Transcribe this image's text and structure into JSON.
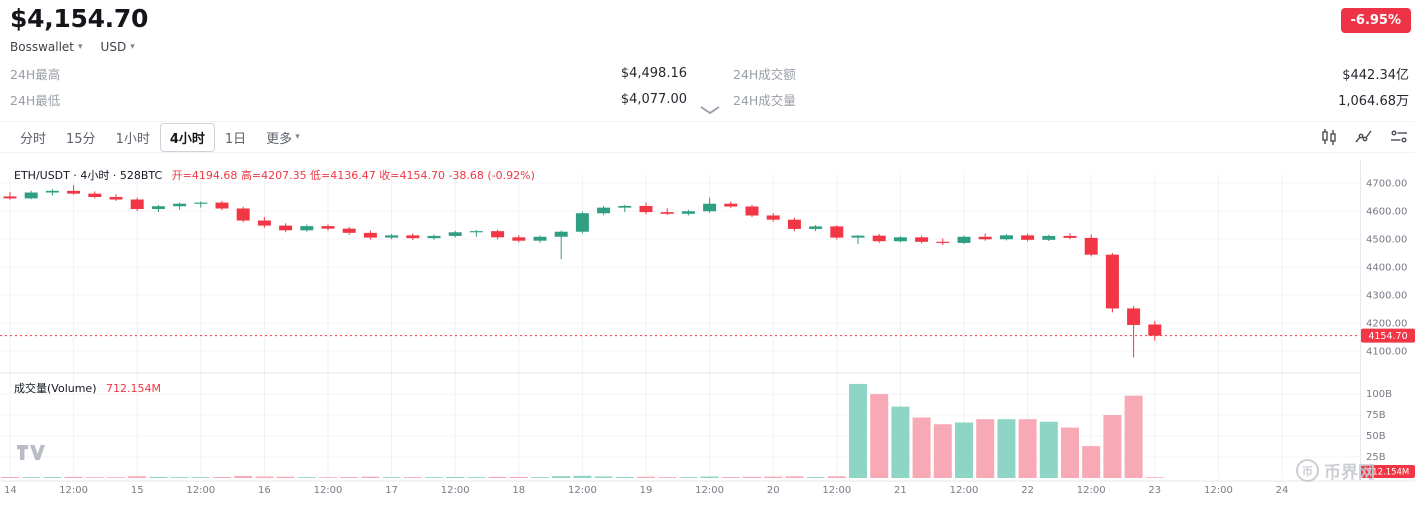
{
  "header": {
    "price": "$4,154.70",
    "change_badge": "-6.95%",
    "wallet_selector": "Bosswallet",
    "currency_selector": "USD",
    "stats": {
      "high_label": "24H最高",
      "high_value": "$4,498.16",
      "low_label": "24H最低",
      "low_value": "$4,077.00",
      "amount_label": "24H成交额",
      "amount_value": "$442.34亿",
      "volume_label": "24H成交量",
      "volume_value": "1,064.68万"
    }
  },
  "toolbar": {
    "intervals": [
      "分时",
      "15分",
      "1小时",
      "4小时",
      "1日"
    ],
    "active_interval": "4小时",
    "more_label": "更多",
    "icons": [
      "candlestick-style-icon",
      "indicators-icon",
      "chart-settings-icon"
    ]
  },
  "chart": {
    "symbol_info": "ETH/USDT · 4小时 · 528BTC",
    "ohlc_text": "开=4194.68 高=4207.35 低=4136.47 收=4154.70 -38.68 (-0.92%)",
    "volume_label": "成交量(Volume)",
    "volume_value": "712.154M",
    "price_badge": "4154.70",
    "volume_badge": "712.154M",
    "watermark_icon": "币",
    "watermark": "币界网"
  },
  "chart_data": {
    "type": "candlestick",
    "title": "ETH/USDT 4小时",
    "symbol": "ETH/USDT",
    "interval": "4小时",
    "grid": true,
    "legend_position": "top-left",
    "ylim_price": [
      4100,
      4700
    ],
    "ylim_volume_B": [
      0,
      115
    ],
    "current_price": 4154.7,
    "ohlc_last": {
      "open": 4194.68,
      "high": 4207.35,
      "low": 4136.47,
      "close": 4154.7,
      "change": -38.68,
      "change_pct": "-0.92%"
    },
    "price_axis_ticks": [
      "4700.00",
      "4600.00",
      "4500.00",
      "4400.00",
      "4300.00",
      "4200.00",
      "4100.00"
    ],
    "volume_axis_ticks": [
      "100B",
      "75B",
      "50B",
      "25B"
    ],
    "x_axis_ticks": [
      "14",
      "12:00",
      "15",
      "12:00",
      "16",
      "12:00",
      "17",
      "12:00",
      "18",
      "12:00",
      "19",
      "12:00",
      "20",
      "12:00",
      "21",
      "12:00",
      "22",
      "12:00",
      "23",
      "12:00",
      "24"
    ],
    "candles": [
      [
        4652,
        4668,
        4640,
        4645
      ],
      [
        4645,
        4672,
        4642,
        4666
      ],
      [
        4666,
        4678,
        4655,
        4672
      ],
      [
        4672,
        4692,
        4658,
        4662
      ],
      [
        4662,
        4670,
        4645,
        4650
      ],
      [
        4650,
        4660,
        4636,
        4641
      ],
      [
        4641,
        4648,
        4600,
        4607
      ],
      [
        4607,
        4622,
        4596,
        4617
      ],
      [
        4617,
        4630,
        4605,
        4626
      ],
      [
        4626,
        4634,
        4612,
        4630
      ],
      [
        4630,
        4636,
        4603,
        4609
      ],
      [
        4609,
        4615,
        4560,
        4566
      ],
      [
        4566,
        4578,
        4540,
        4548
      ],
      [
        4548,
        4556,
        4524,
        4531
      ],
      [
        4531,
        4552,
        4526,
        4546
      ],
      [
        4546,
        4552,
        4530,
        4537
      ],
      [
        4537,
        4543,
        4516,
        4522
      ],
      [
        4522,
        4530,
        4498,
        4505
      ],
      [
        4505,
        4518,
        4499,
        4513
      ],
      [
        4513,
        4520,
        4496,
        4503
      ],
      [
        4503,
        4516,
        4497,
        4511
      ],
      [
        4511,
        4529,
        4505,
        4524
      ],
      [
        4524,
        4532,
        4508,
        4528
      ],
      [
        4528,
        4534,
        4499,
        4506
      ],
      [
        4506,
        4514,
        4488,
        4494
      ],
      [
        4494,
        4512,
        4487,
        4508
      ],
      [
        4508,
        4530,
        4428,
        4526
      ],
      [
        4526,
        4598,
        4520,
        4592
      ],
      [
        4592,
        4618,
        4585,
        4612
      ],
      [
        4612,
        4622,
        4596,
        4618
      ],
      [
        4618,
        4630,
        4588,
        4596
      ],
      [
        4596,
        4610,
        4585,
        4590
      ],
      [
        4590,
        4604,
        4584,
        4599
      ],
      [
        4599,
        4648,
        4594,
        4626
      ],
      [
        4626,
        4634,
        4610,
        4616
      ],
      [
        4616,
        4622,
        4578,
        4584
      ],
      [
        4584,
        4592,
        4562,
        4569
      ],
      [
        4569,
        4576,
        4528,
        4536
      ],
      [
        4536,
        4550,
        4528,
        4545
      ],
      [
        4545,
        4549,
        4498,
        4505
      ],
      [
        4505,
        4514,
        4482,
        4512
      ],
      [
        4512,
        4518,
        4486,
        4492
      ],
      [
        4492,
        4510,
        4488,
        4506
      ],
      [
        4506,
        4512,
        4484,
        4490
      ],
      [
        4490,
        4502,
        4478,
        4486
      ],
      [
        4486,
        4512,
        4482,
        4508
      ],
      [
        4508,
        4520,
        4494,
        4499
      ],
      [
        4499,
        4517,
        4495,
        4513
      ],
      [
        4513,
        4519,
        4492,
        4497
      ],
      [
        4497,
        4515,
        4493,
        4511
      ],
      [
        4511,
        4521,
        4499,
        4504
      ],
      [
        4504,
        4516,
        4438,
        4444
      ],
      [
        4444,
        4450,
        4238,
        4252
      ],
      [
        4252,
        4260,
        4077,
        4193
      ],
      [
        4194.68,
        4207.35,
        4136.47,
        4154.7
      ]
    ],
    "volumes_B": [
      1.2,
      0.9,
      1.1,
      1.4,
      0.8,
      0.7,
      2.1,
      1.3,
      1.0,
      0.9,
      1.2,
      2.4,
      1.8,
      1.5,
      0.9,
      0.8,
      1.1,
      1.6,
      0.9,
      1.0,
      0.8,
      1.2,
      1.0,
      1.4,
      1.3,
      0.9,
      2.2,
      2.6,
      1.8,
      1.2,
      1.5,
      1.0,
      0.9,
      1.7,
      1.1,
      1.4,
      1.6,
      2.0,
      1.1,
      2.0,
      112,
      100,
      85,
      72,
      64,
      66,
      70,
      70,
      70,
      67,
      60,
      38,
      75,
      98,
      0.712
    ],
    "colors": {
      "up": "#2f9e82",
      "down": "#f23645",
      "vol_up": "#8ed5c5",
      "vol_down": "#f7a9b5",
      "grid": "#f0f1f4",
      "grid_h": "#f5f6f8",
      "divider": "#e5e7ea",
      "axis_text": "#787b86",
      "accent_red": "#f23645"
    }
  }
}
